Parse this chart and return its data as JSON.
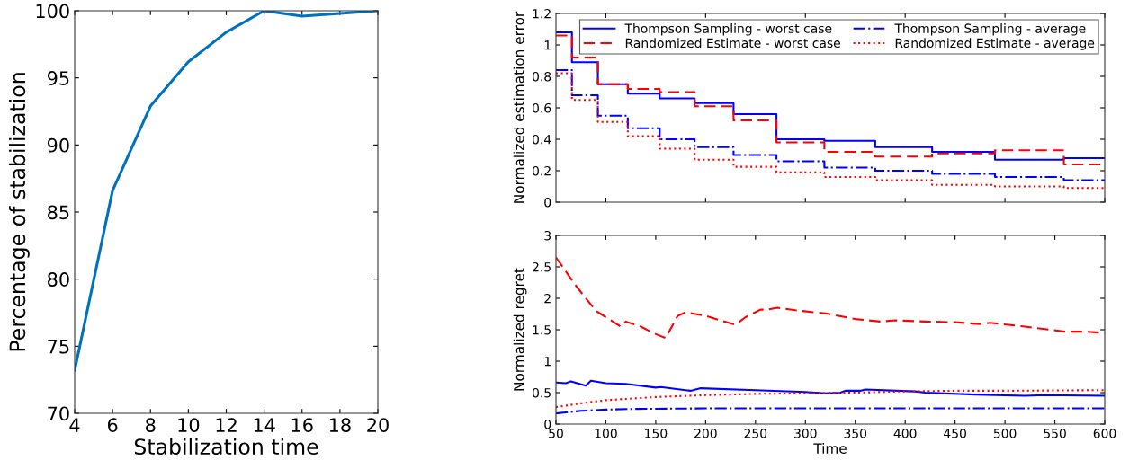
{
  "chart_data": [
    {
      "type": "line",
      "xlabel": "Stabilization time",
      "ylabel": "Percentage of stabilization",
      "x": [
        4,
        6,
        8,
        10,
        12,
        14,
        16,
        18,
        20
      ],
      "series": [
        {
          "color": "#0072bd",
          "values": [
            73.2,
            86.6,
            92.9,
            96.2,
            98.4,
            100,
            99.6,
            99.8,
            100
          ]
        }
      ],
      "xlim": [
        4,
        20
      ],
      "xticks": [
        4,
        6,
        8,
        10,
        12,
        14,
        16,
        18,
        20
      ],
      "ylim": [
        70,
        100
      ],
      "yticks": [
        70,
        75,
        80,
        85,
        90,
        95,
        100
      ],
      "grid": false,
      "legend": false,
      "marker": "none"
    },
    {
      "type": "step",
      "ylabel": "Normalized estimation error",
      "x": [
        50,
        66,
        92,
        122,
        154,
        189,
        228,
        271,
        319,
        370,
        427,
        490,
        559,
        600
      ],
      "series": [
        {
          "name": "Thompson Sampling - worst case",
          "color": "#0000ff",
          "line_style": "solid",
          "values": [
            1.08,
            0.89,
            0.75,
            0.69,
            0.66,
            0.63,
            0.56,
            0.4,
            0.39,
            0.35,
            0.32,
            0.27,
            0.28,
            0.28
          ]
        },
        {
          "name": "Randomized Estimate - worst case",
          "color": "#ff0000",
          "line_style": "dashed",
          "values": [
            1.06,
            0.92,
            0.75,
            0.72,
            0.7,
            0.61,
            0.52,
            0.38,
            0.32,
            0.29,
            0.31,
            0.33,
            0.24,
            0.24
          ]
        },
        {
          "name": "Thompson Sampling - average",
          "color": "#0000ff",
          "line_style": "dashdot",
          "values": [
            0.84,
            0.68,
            0.55,
            0.47,
            0.4,
            0.35,
            0.3,
            0.26,
            0.22,
            0.2,
            0.18,
            0.16,
            0.14,
            0.14
          ]
        },
        {
          "name": "Randomized Estimate - average",
          "color": "#ff0000",
          "line_style": "dotted",
          "values": [
            0.82,
            0.65,
            0.51,
            0.42,
            0.34,
            0.27,
            0.225,
            0.19,
            0.16,
            0.14,
            0.11,
            0.1,
            0.09,
            0.09
          ]
        }
      ],
      "xlim": [
        50,
        600
      ],
      "ylim": [
        0,
        1.2
      ],
      "yticks": [
        0,
        0.2,
        0.4,
        0.6,
        0.8,
        1,
        1.2
      ],
      "tick_labels": "y",
      "grid": false,
      "legend": "top right"
    },
    {
      "type": "line",
      "xlabel": "Time",
      "ylabel": "Normalized regret",
      "series": [
        {
          "color": "#ff0000",
          "line_style": "dashed",
          "x": [
            50,
            70,
            90,
            100,
            115,
            120,
            135,
            150,
            160,
            172,
            180,
            200,
            230,
            240,
            255,
            262,
            272,
            290,
            320,
            350,
            375,
            390,
            420,
            450,
            475,
            485,
            520,
            560,
            580,
            600
          ],
          "values": [
            2.65,
            2.2,
            1.8,
            1.7,
            1.55,
            1.63,
            1.55,
            1.43,
            1.37,
            1.72,
            1.78,
            1.72,
            1.58,
            1.7,
            1.82,
            1.82,
            1.85,
            1.81,
            1.76,
            1.67,
            1.63,
            1.65,
            1.63,
            1.62,
            1.59,
            1.61,
            1.55,
            1.47,
            1.47,
            1.45
          ]
        },
        {
          "color": "#0000ff",
          "line_style": "solid",
          "x": [
            50,
            60,
            65,
            80,
            85,
            100,
            120,
            150,
            155,
            185,
            195,
            250,
            300,
            320,
            335,
            340,
            355,
            360,
            410,
            420,
            470,
            520,
            540,
            600
          ],
          "values": [
            0.66,
            0.65,
            0.68,
            0.61,
            0.69,
            0.65,
            0.64,
            0.58,
            0.59,
            0.53,
            0.57,
            0.54,
            0.51,
            0.49,
            0.5,
            0.53,
            0.53,
            0.55,
            0.52,
            0.5,
            0.47,
            0.45,
            0.46,
            0.45
          ]
        },
        {
          "color": "#ff0000",
          "line_style": "dotted",
          "x": [
            50,
            75,
            100,
            150,
            200,
            250,
            300,
            350,
            400,
            450,
            500,
            600
          ],
          "values": [
            0.27,
            0.33,
            0.38,
            0.43,
            0.46,
            0.48,
            0.49,
            0.5,
            0.52,
            0.53,
            0.53,
            0.54
          ]
        },
        {
          "color": "#0000ff",
          "line_style": "dashdot",
          "x": [
            50,
            75,
            100,
            125,
            200,
            300,
            400,
            600
          ],
          "values": [
            0.17,
            0.21,
            0.23,
            0.24,
            0.25,
            0.25,
            0.25,
            0.25
          ]
        }
      ],
      "xlim": [
        50,
        600
      ],
      "xticks": [
        50,
        100,
        150,
        200,
        250,
        300,
        350,
        400,
        450,
        500,
        550,
        600
      ],
      "ylim": [
        0,
        3
      ],
      "yticks": [
        0,
        0.5,
        1,
        1.5,
        2,
        2.5,
        3
      ],
      "grid": false,
      "legend": false
    }
  ]
}
